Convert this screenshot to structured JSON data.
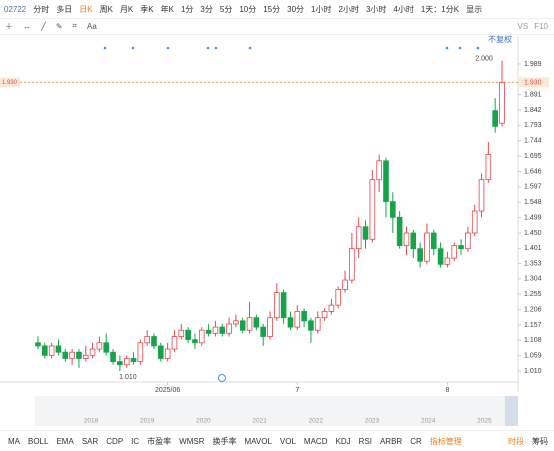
{
  "toolbar": {
    "symbol": "02722",
    "items": [
      "分时",
      "多日",
      "日K",
      "周K",
      "月K",
      "季K",
      "年K",
      "1分",
      "3分",
      "5分",
      "10分",
      "15分",
      "30分",
      "1小时",
      "2小时",
      "3小时",
      "4小时",
      "1天：1分K",
      "显示"
    ],
    "font_button": "Aa",
    "right": [
      "VS",
      "F10"
    ]
  },
  "chart_data": {
    "type": "candlestick",
    "adjust_label": "不复权",
    "categories": [
      null,
      null,
      null,
      null,
      null,
      null,
      null,
      null,
      null,
      null,
      null,
      null,
      null,
      null,
      null,
      null,
      null,
      null,
      null,
      "2025/06",
      null,
      null,
      null,
      null,
      null,
      null,
      null,
      null,
      null,
      null,
      null,
      null,
      null,
      null,
      null,
      null,
      null,
      null,
      "7",
      null,
      null,
      null,
      null,
      null,
      null,
      null,
      null,
      null,
      null,
      null,
      null,
      null,
      null,
      null,
      null,
      null,
      null,
      null,
      null,
      null,
      "8",
      null,
      null,
      null,
      null,
      null,
      null,
      null,
      null
    ],
    "open": [
      1.1,
      1.09,
      1.06,
      1.09,
      1.07,
      1.05,
      1.07,
      1.05,
      1.06,
      1.08,
      1.1,
      1.07,
      1.04,
      1.03,
      1.05,
      1.04,
      1.1,
      1.12,
      1.09,
      1.05,
      1.08,
      1.12,
      1.14,
      1.11,
      1.1,
      1.14,
      1.13,
      1.15,
      1.13,
      1.16,
      1.17,
      1.14,
      1.18,
      1.15,
      1.12,
      1.18,
      1.26,
      1.18,
      1.15,
      1.2,
      1.17,
      1.14,
      1.18,
      1.2,
      1.22,
      1.27,
      1.3,
      1.4,
      1.47,
      1.43,
      1.62,
      1.68,
      1.55,
      1.5,
      1.41,
      1.45,
      1.4,
      1.36,
      1.45,
      1.4,
      1.35,
      1.37,
      1.41,
      1.4,
      1.45,
      1.52,
      1.62,
      1.84,
      1.8
    ],
    "high": [
      1.12,
      1.1,
      1.1,
      1.11,
      1.08,
      1.08,
      1.08,
      1.09,
      1.1,
      1.12,
      1.13,
      1.08,
      1.06,
      1.06,
      1.07,
      1.11,
      1.14,
      1.13,
      1.1,
      1.1,
      1.14,
      1.16,
      1.15,
      1.13,
      1.15,
      1.16,
      1.17,
      1.16,
      1.18,
      1.19,
      1.18,
      1.23,
      1.19,
      1.16,
      1.2,
      1.29,
      1.27,
      1.2,
      1.22,
      1.21,
      1.18,
      1.2,
      1.21,
      1.24,
      1.28,
      1.33,
      1.45,
      1.5,
      1.49,
      1.65,
      1.7,
      1.69,
      1.58,
      1.52,
      1.47,
      1.46,
      1.42,
      1.48,
      1.46,
      1.42,
      1.39,
      1.42,
      1.43,
      1.47,
      1.54,
      1.64,
      1.74,
      1.88,
      2.0
    ],
    "low": [
      1.08,
      1.05,
      1.05,
      1.06,
      1.04,
      1.03,
      1.02,
      1.04,
      1.05,
      1.07,
      1.06,
      1.03,
      1.01,
      1.02,
      1.03,
      1.03,
      1.09,
      1.08,
      1.04,
      1.04,
      1.07,
      1.11,
      1.1,
      1.08,
      1.09,
      1.12,
      1.12,
      1.12,
      1.12,
      1.15,
      1.13,
      1.13,
      1.14,
      1.09,
      1.11,
      1.17,
      1.16,
      1.14,
      1.14,
      1.15,
      1.1,
      1.13,
      1.17,
      1.19,
      1.21,
      1.26,
      1.29,
      1.37,
      1.4,
      1.42,
      1.58,
      1.5,
      1.45,
      1.4,
      1.38,
      1.37,
      1.34,
      1.35,
      1.38,
      1.34,
      1.34,
      1.36,
      1.38,
      1.39,
      1.44,
      1.5,
      1.61,
      1.77,
      1.79
    ],
    "close": [
      1.09,
      1.06,
      1.09,
      1.07,
      1.05,
      1.07,
      1.05,
      1.06,
      1.08,
      1.1,
      1.07,
      1.04,
      1.03,
      1.05,
      1.04,
      1.1,
      1.12,
      1.09,
      1.05,
      1.08,
      1.12,
      1.14,
      1.11,
      1.1,
      1.14,
      1.13,
      1.15,
      1.13,
      1.16,
      1.17,
      1.14,
      1.18,
      1.15,
      1.12,
      1.18,
      1.26,
      1.18,
      1.15,
      1.2,
      1.17,
      1.14,
      1.18,
      1.2,
      1.22,
      1.27,
      1.3,
      1.4,
      1.47,
      1.43,
      1.62,
      1.68,
      1.55,
      1.5,
      1.41,
      1.45,
      1.4,
      1.36,
      1.45,
      1.4,
      1.35,
      1.37,
      1.41,
      1.4,
      1.45,
      1.52,
      1.62,
      1.7,
      1.79,
      1.93
    ],
    "up_color": "#e5484d",
    "down_color": "#17a34a",
    "ylim": [
      0.975,
      2.078
    ],
    "yticks": [
      {
        "value": 1.01,
        "label": "1.010"
      },
      {
        "value": 1.059,
        "label": "1.059"
      },
      {
        "value": 1.108,
        "label": "1.108"
      },
      {
        "value": 1.157,
        "label": "1.157"
      },
      {
        "value": 1.206,
        "label": "1.206"
      },
      {
        "value": 1.255,
        "label": "1.255"
      },
      1.304,
      {
        "value": 1.353,
        "label": "1.353"
      },
      1.401,
      {
        "value": 1.45,
        "label": "1.450"
      },
      1.499,
      1.548,
      1.597,
      1.646,
      1.695,
      1.744,
      1.793,
      1.842,
      1.891,
      1.989
    ],
    "last_price": {
      "value": 1.93,
      "label": "1.930"
    },
    "low_mark": {
      "index": 12,
      "value": 1.01,
      "label": "1.010"
    },
    "high_mark": {
      "index": 68,
      "value": 2.0,
      "label": "2.000"
    },
    "navigator_years": [
      "2018",
      "2019",
      "2020",
      "2021",
      "2022",
      "2023",
      "2024",
      "2025"
    ]
  },
  "indicators": [
    "MA",
    "BOLL",
    "EMA",
    "SAR",
    "CDP",
    "IC",
    "市盈率",
    "WMSR",
    "换手率",
    "MAVOL",
    "VOL",
    "MACD",
    "KDJ",
    "RSI",
    "ARBR",
    "CR"
  ],
  "indicator_tools": [
    "指标管理",
    "时段",
    "筹码"
  ]
}
